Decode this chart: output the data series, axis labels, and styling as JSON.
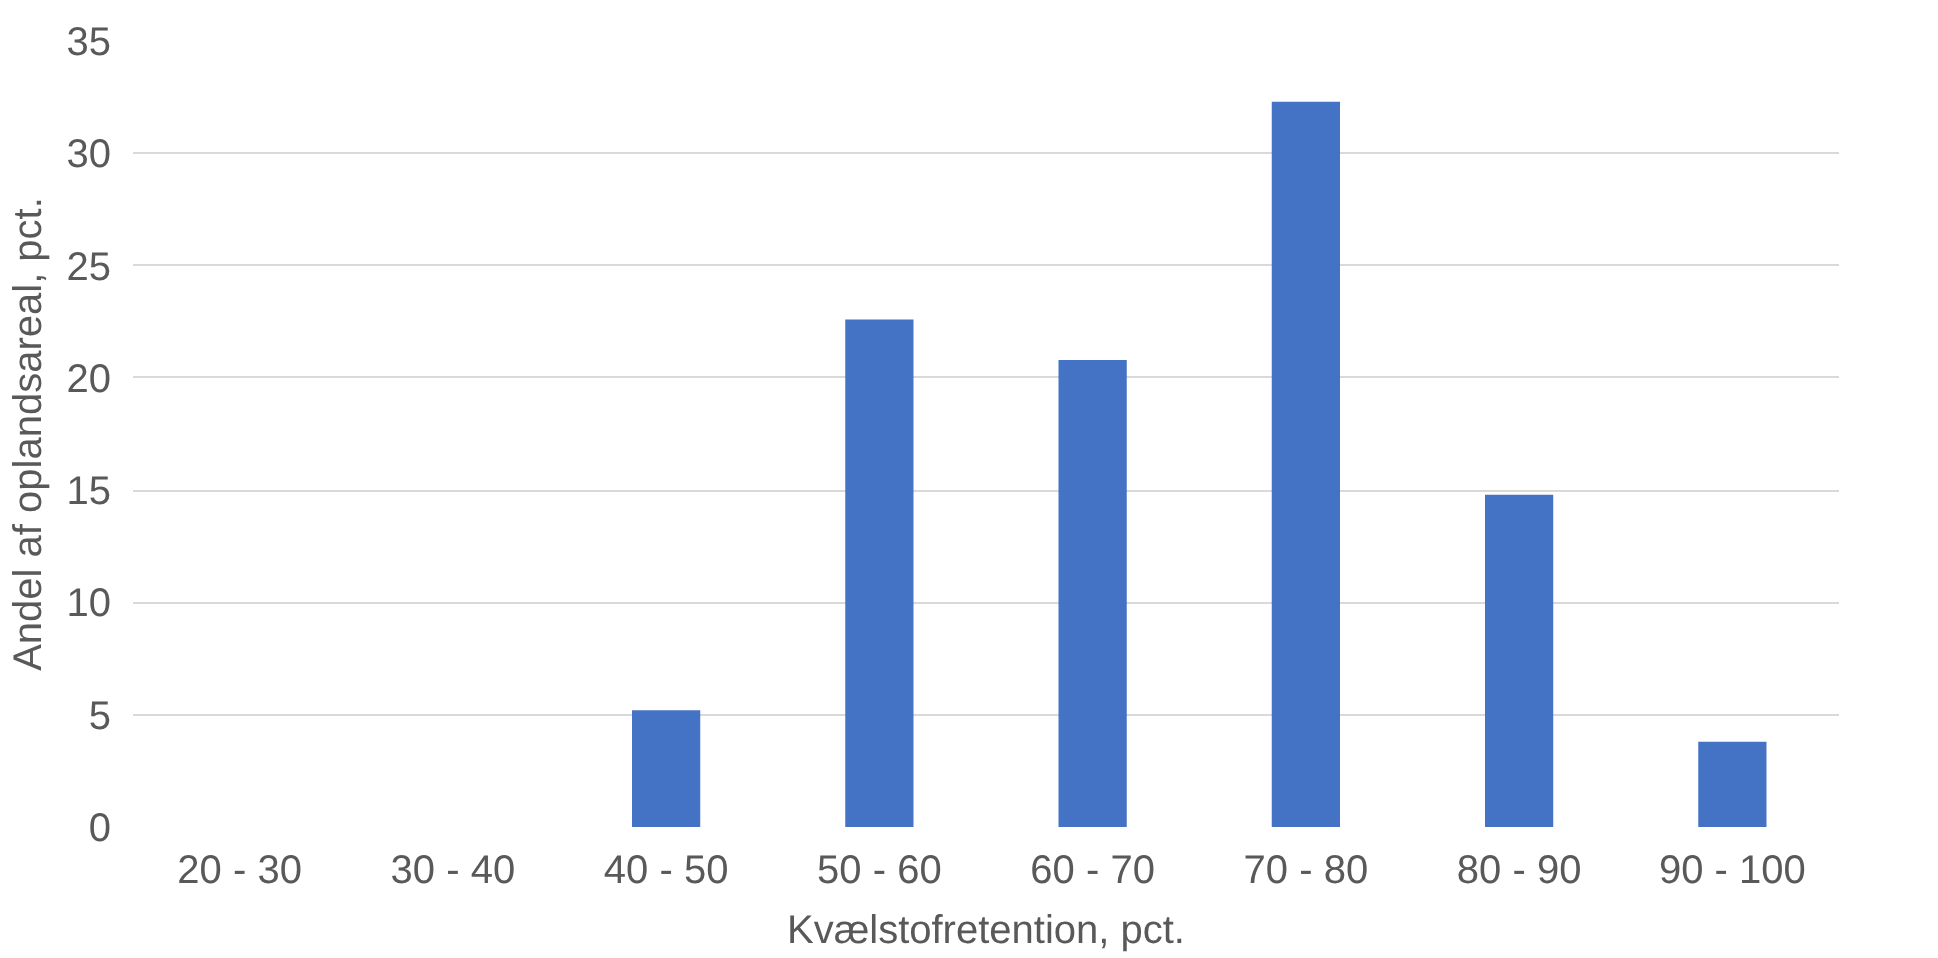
{
  "chart_data": {
    "type": "bar",
    "xlabel": "Kvælstofretention, pct.",
    "ylabel": "Andel af oplandsareal, pct.",
    "categories": [
      "20 - 30",
      "30 - 40",
      "40 - 50",
      "50 - 60",
      "60 - 70",
      "70 - 80",
      "80 - 90",
      "90 - 100"
    ],
    "values": [
      0,
      0,
      5.2,
      22.6,
      20.8,
      32.3,
      14.8,
      3.8
    ],
    "color": "#4472c4",
    "ylim": [
      0,
      35
    ],
    "yticks": [
      0,
      5,
      10,
      15,
      20,
      25,
      30,
      35
    ],
    "grid": "y"
  }
}
